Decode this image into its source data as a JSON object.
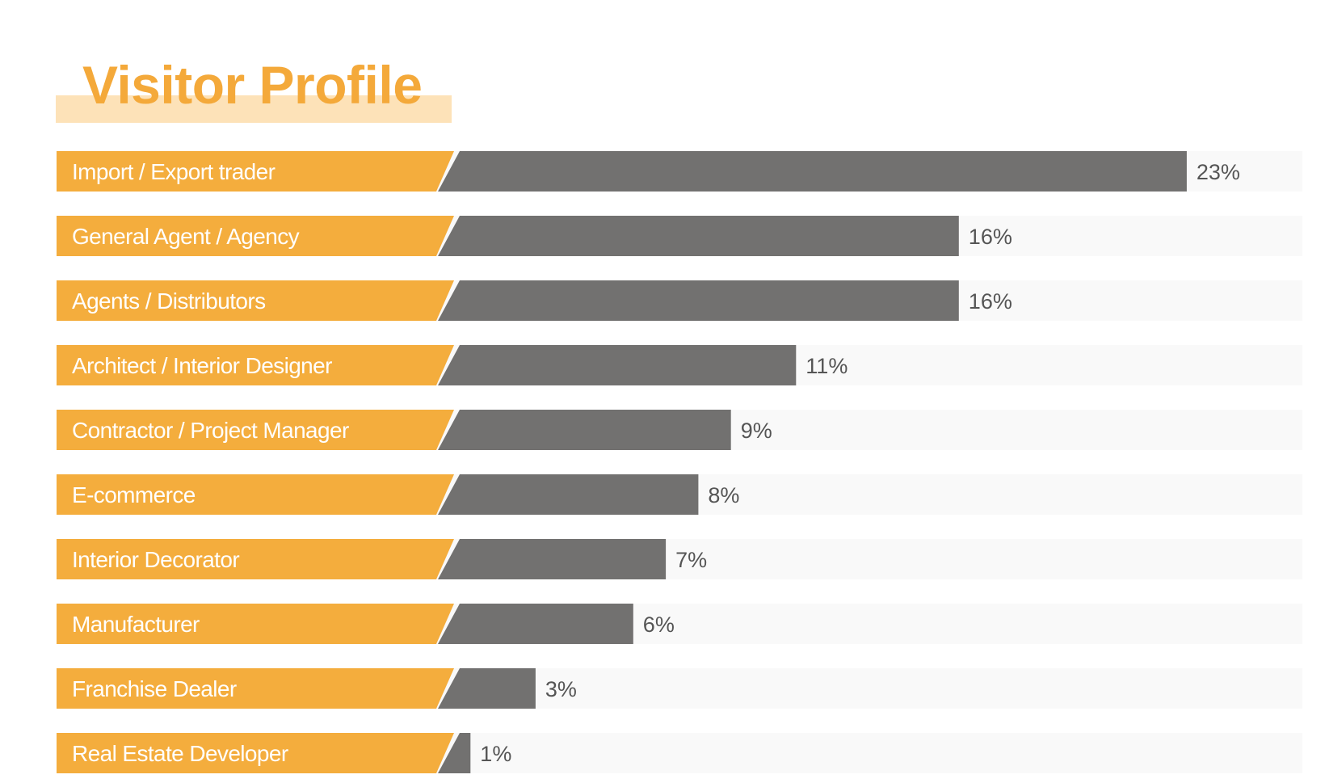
{
  "title": "Visitor Profile",
  "colors": {
    "accent": "#f4ad3d",
    "bar": "#727170",
    "track": "#f9f9f9",
    "label_text": "#ffffff",
    "value_text": "#555555"
  },
  "chart_data": {
    "type": "bar",
    "orientation": "horizontal",
    "title": "Visitor Profile",
    "categories": [
      "Import / Export trader",
      "General Agent / Agency",
      "Agents / Distributors",
      "Architect / Interior Designer",
      "Contractor / Project Manager",
      "E-commerce",
      "Interior Decorator",
      "Manufacturer",
      "Franchise Dealer",
      "Real Estate Developer"
    ],
    "values": [
      23,
      16,
      16,
      11,
      9,
      8,
      7,
      6,
      3,
      1
    ],
    "value_labels": [
      "23%",
      "16%",
      "16%",
      "11%",
      "9%",
      "8%",
      "7%",
      "6%",
      "3%",
      "1%"
    ],
    "unit": "%",
    "xlabel": "",
    "ylabel": "",
    "grid": false,
    "legend": false
  }
}
